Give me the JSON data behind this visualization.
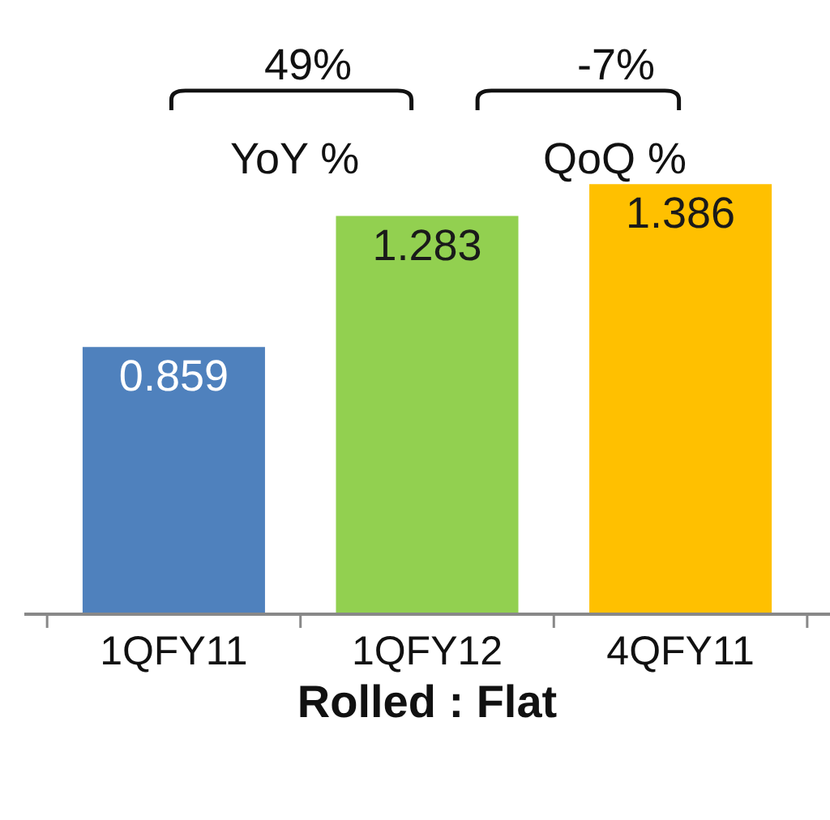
{
  "chart_data": {
    "type": "bar",
    "xlabel": "Rolled : Flat",
    "categories": [
      "1QFY11",
      "1QFY12",
      "4QFY11"
    ],
    "values": [
      0.859,
      1.283,
      1.386
    ],
    "colors": [
      "#4f81bd",
      "#92d050",
      "#ffc000"
    ],
    "data_labels": true,
    "tick_labels": "x",
    "annotations": [
      "49%",
      "YoY %",
      "-7%",
      "QoQ %"
    ]
  }
}
